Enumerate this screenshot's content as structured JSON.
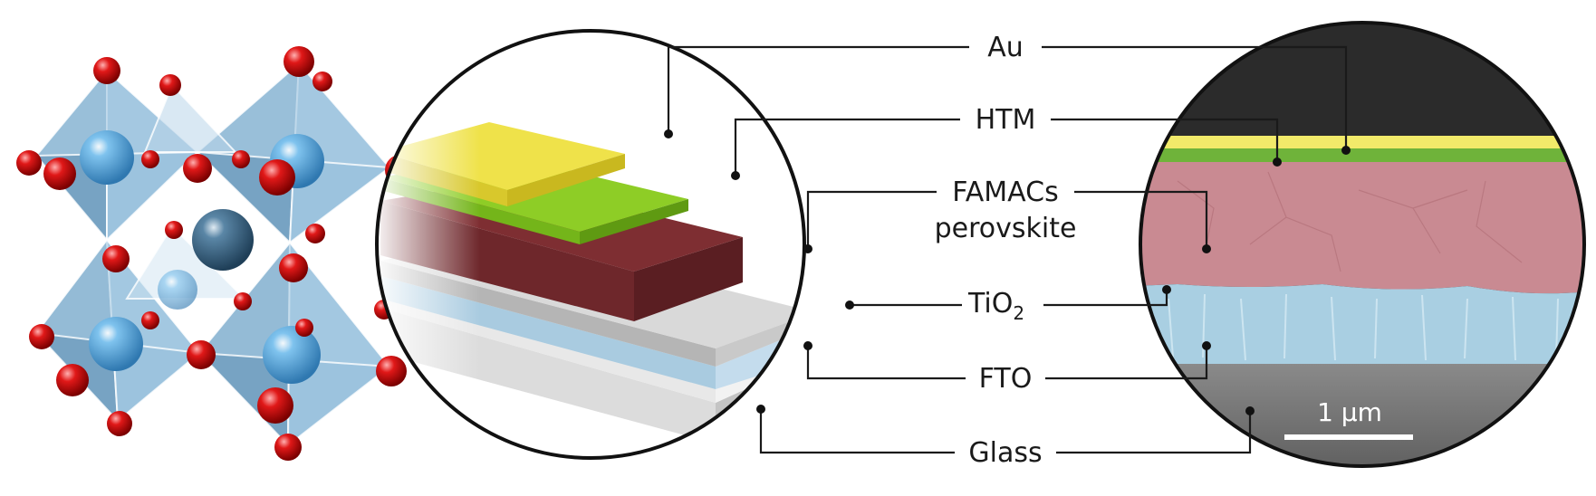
{
  "labels": {
    "au": "Au",
    "htm": "HTM",
    "famacs": "FAMACs",
    "perovskite": "perovskite",
    "tio2_base": "TiO",
    "tio2_sub": "2",
    "fto": "FTO",
    "glass": "Glass"
  },
  "scale_bar": {
    "label": "1 µm"
  },
  "colors": {
    "au": "#e6d93a",
    "htm": "#7fc41e",
    "perovskite": "#7a2a2e",
    "tio2": "#cfcfcf",
    "fto": "#a9cbe0",
    "glass": "#efefef",
    "octahedron": "#7fb2d6",
    "oxygen": "#d01616",
    "b_site": "#5aa9e0",
    "a_site": "#3f6f92",
    "sem_background": "#2b2b2b",
    "sem_perovskite": "#c98a92",
    "sem_fto": "#a9cfe2"
  }
}
